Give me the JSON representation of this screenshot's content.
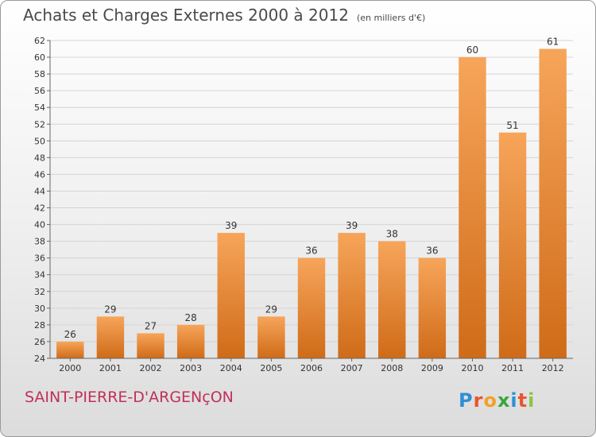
{
  "header": {
    "title": "Achats et Charges Externes 2000 à 2012",
    "subtitle": "(en milliers d'€)"
  },
  "footer": {
    "commune": "SAINT-PIERRE-D'ARGENçON",
    "brand_letters": [
      "P",
      "r",
      "o",
      "x",
      "i",
      "t",
      "i"
    ],
    "brand_colors": [
      "#2f8fd6",
      "#e8572d",
      "#f2a12a",
      "#3aa63a",
      "#2f8fd6",
      "#e8572d",
      "#8cc63f"
    ]
  },
  "chart_data": {
    "type": "bar",
    "title": "Achats et Charges Externes 2000 à 2012",
    "categories": [
      "2000",
      "2001",
      "2002",
      "2003",
      "2004",
      "2005",
      "2006",
      "2007",
      "2008",
      "2009",
      "2010",
      "2011",
      "2012"
    ],
    "values": [
      26,
      29,
      27,
      28,
      39,
      29,
      36,
      39,
      38,
      36,
      60,
      51,
      61
    ],
    "ylim": [
      24,
      62
    ],
    "yticks": [
      24,
      26,
      28,
      30,
      32,
      34,
      36,
      38,
      40,
      42,
      44,
      46,
      48,
      50,
      52,
      54,
      56,
      58,
      60,
      62
    ],
    "grid": true,
    "bar_color_top": "#f7a55a",
    "bar_color_bottom": "#cf6b18",
    "grid_color": "#d4d4d4"
  }
}
